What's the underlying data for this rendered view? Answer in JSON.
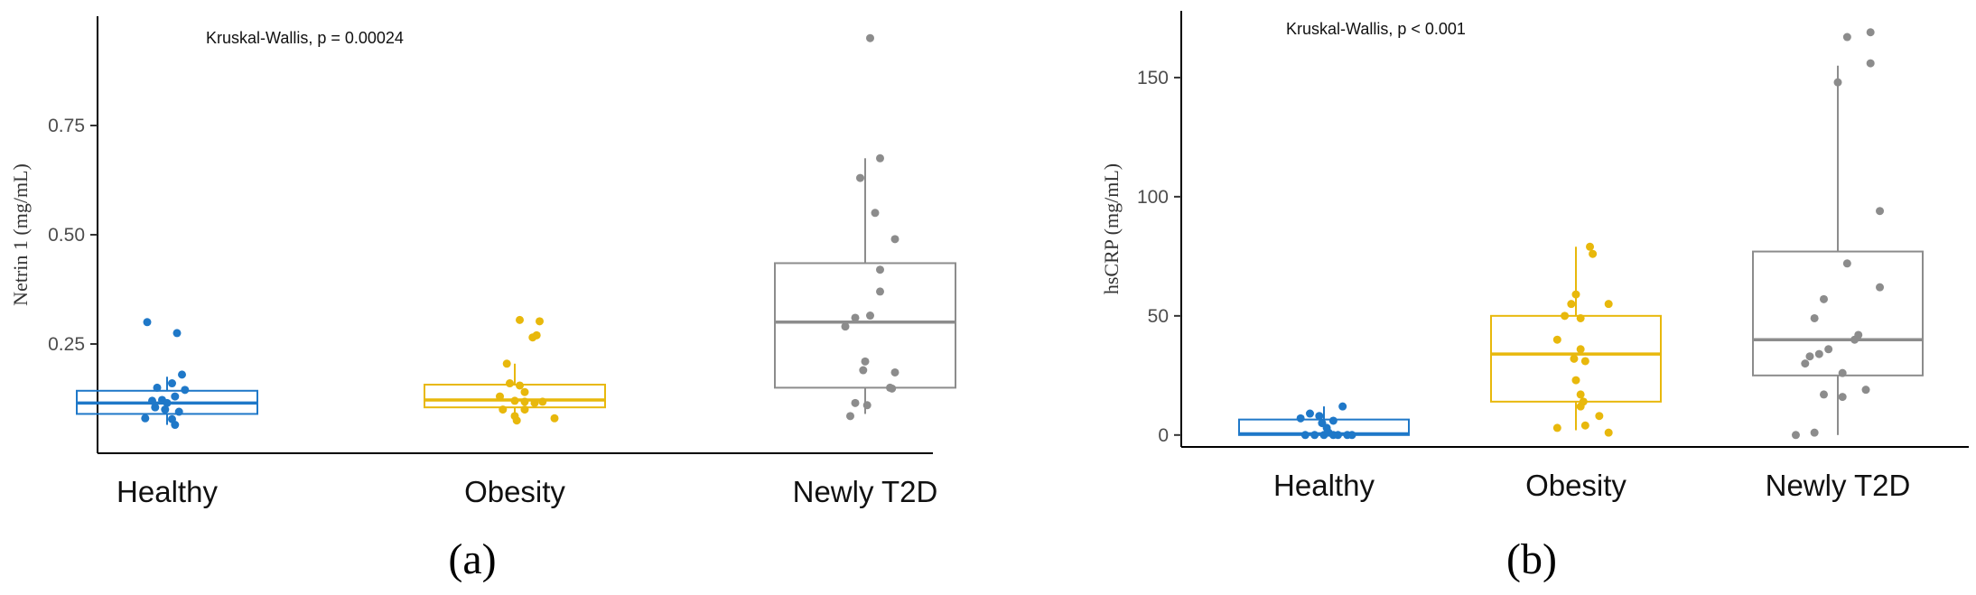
{
  "colors": {
    "Healthy": "#1f78c8",
    "Obesity": "#e8b80c",
    "Newly T2D": "#8c8c8c",
    "axis": "#000000"
  },
  "chart_data": [
    {
      "type": "boxplot",
      "panel_label": "(a)",
      "ylabel": "Netrin 1 (mg/mL)",
      "annotation": "Kruskal-Wallis, p = 0.00024",
      "ylim": [
        0.0,
        1.0
      ],
      "yticks": [
        0.25,
        0.5,
        0.75
      ],
      "ytick_labels": [
        "0.25",
        "0.50",
        "0.75"
      ],
      "categories": [
        "Healthy",
        "Obesity",
        "Newly T2D"
      ],
      "boxes": [
        {
          "q1": 0.09,
          "median": 0.115,
          "q3": 0.143,
          "whisker_low": 0.065,
          "whisker_high": 0.175
        },
        {
          "q1": 0.105,
          "median": 0.122,
          "q3": 0.157,
          "whisker_low": 0.08,
          "whisker_high": 0.205
        },
        {
          "q1": 0.15,
          "median": 0.3,
          "q3": 0.435,
          "whisker_low": 0.09,
          "whisker_high": 0.675
        }
      ],
      "points": [
        [
          {
            "x": -0.2,
            "y": 0.3
          },
          {
            "x": 0.1,
            "y": 0.275
          },
          {
            "x": -0.1,
            "y": 0.15
          },
          {
            "x": 0.15,
            "y": 0.18
          },
          {
            "x": 0.05,
            "y": 0.16
          },
          {
            "x": -0.15,
            "y": 0.12
          },
          {
            "x": -0.05,
            "y": 0.122
          },
          {
            "x": 0.08,
            "y": 0.13
          },
          {
            "x": 0.18,
            "y": 0.145
          },
          {
            "x": -0.02,
            "y": 0.1
          },
          {
            "x": 0.0,
            "y": 0.115
          },
          {
            "x": 0.12,
            "y": 0.095
          },
          {
            "x": -0.12,
            "y": 0.105
          },
          {
            "x": -0.22,
            "y": 0.08
          },
          {
            "x": 0.05,
            "y": 0.078
          },
          {
            "x": 0.08,
            "y": 0.065
          }
        ],
        [
          {
            "x": 0.05,
            "y": 0.305
          },
          {
            "x": 0.25,
            "y": 0.302
          },
          {
            "x": 0.22,
            "y": 0.27
          },
          {
            "x": 0.18,
            "y": 0.265
          },
          {
            "x": -0.08,
            "y": 0.205
          },
          {
            "x": -0.05,
            "y": 0.16
          },
          {
            "x": 0.05,
            "y": 0.155
          },
          {
            "x": 0.1,
            "y": 0.14
          },
          {
            "x": -0.15,
            "y": 0.13
          },
          {
            "x": 0.0,
            "y": 0.12
          },
          {
            "x": 0.1,
            "y": 0.118
          },
          {
            "x": 0.2,
            "y": 0.115
          },
          {
            "x": 0.28,
            "y": 0.118
          },
          {
            "x": -0.12,
            "y": 0.1
          },
          {
            "x": 0.1,
            "y": 0.1
          },
          {
            "x": 0.0,
            "y": 0.085
          },
          {
            "x": 0.02,
            "y": 0.075
          },
          {
            "x": 0.4,
            "y": 0.08
          }
        ],
        [
          {
            "x": 0.05,
            "y": 0.95
          },
          {
            "x": 0.15,
            "y": 0.675
          },
          {
            "x": -0.05,
            "y": 0.63
          },
          {
            "x": 0.1,
            "y": 0.55
          },
          {
            "x": 0.3,
            "y": 0.49
          },
          {
            "x": 0.15,
            "y": 0.42
          },
          {
            "x": 0.15,
            "y": 0.37
          },
          {
            "x": -0.1,
            "y": 0.31
          },
          {
            "x": -0.2,
            "y": 0.29
          },
          {
            "x": 0.05,
            "y": 0.315
          },
          {
            "x": 0.0,
            "y": 0.21
          },
          {
            "x": -0.02,
            "y": 0.19
          },
          {
            "x": 0.3,
            "y": 0.185
          },
          {
            "x": 0.25,
            "y": 0.15
          },
          {
            "x": 0.27,
            "y": 0.148
          },
          {
            "x": -0.1,
            "y": 0.115
          },
          {
            "x": 0.02,
            "y": 0.11
          },
          {
            "x": -0.15,
            "y": 0.085
          }
        ]
      ]
    },
    {
      "type": "boxplot",
      "panel_label": "(b)",
      "ylabel": "hsCRP (mg/mL)",
      "annotation": "Kruskal-Wallis, p < 0.001",
      "ylim": [
        -5,
        178
      ],
      "yticks": [
        0,
        50,
        100,
        150
      ],
      "ytick_labels": [
        "0",
        "50",
        "100",
        "150"
      ],
      "categories": [
        "Healthy",
        "Obesity",
        "Newly T2D"
      ],
      "boxes": [
        {
          "q1": 0.0,
          "median": 0.5,
          "q3": 6.5,
          "whisker_low": 0.0,
          "whisker_high": 12.0
        },
        {
          "q1": 14.0,
          "median": 34.0,
          "q3": 50.0,
          "whisker_low": 2.0,
          "whisker_high": 79.0
        },
        {
          "q1": 25.0,
          "median": 40.0,
          "q3": 77.0,
          "whisker_low": 0.0,
          "whisker_high": 155.0
        }
      ],
      "points": [
        [
          {
            "x": -0.25,
            "y": 7
          },
          {
            "x": -0.15,
            "y": 9
          },
          {
            "x": -0.05,
            "y": 8
          },
          {
            "x": 0.1,
            "y": 6
          },
          {
            "x": 0.2,
            "y": 12
          },
          {
            "x": -0.2,
            "y": 0
          },
          {
            "x": -0.02,
            "y": 5
          },
          {
            "x": 0.03,
            "y": 3
          },
          {
            "x": -0.1,
            "y": 0
          },
          {
            "x": 0.0,
            "y": 0
          },
          {
            "x": 0.05,
            "y": 1
          },
          {
            "x": 0.1,
            "y": 0
          },
          {
            "x": 0.15,
            "y": 0
          },
          {
            "x": 0.25,
            "y": 0
          },
          {
            "x": 0.3,
            "y": 0
          }
        ],
        [
          {
            "x": 0.15,
            "y": 79
          },
          {
            "x": 0.18,
            "y": 76
          },
          {
            "x": 0.0,
            "y": 59
          },
          {
            "x": -0.05,
            "y": 55
          },
          {
            "x": 0.35,
            "y": 55
          },
          {
            "x": -0.12,
            "y": 50
          },
          {
            "x": 0.05,
            "y": 49
          },
          {
            "x": -0.2,
            "y": 40
          },
          {
            "x": 0.05,
            "y": 36
          },
          {
            "x": -0.02,
            "y": 32
          },
          {
            "x": 0.1,
            "y": 31
          },
          {
            "x": 0.0,
            "y": 23
          },
          {
            "x": 0.05,
            "y": 17
          },
          {
            "x": 0.08,
            "y": 14
          },
          {
            "x": 0.05,
            "y": 12
          },
          {
            "x": 0.25,
            "y": 8
          },
          {
            "x": -0.2,
            "y": 3
          },
          {
            "x": 0.1,
            "y": 4
          },
          {
            "x": 0.35,
            "y": 1
          }
        ],
        [
          {
            "x": 0.1,
            "y": 167
          },
          {
            "x": 0.35,
            "y": 169
          },
          {
            "x": 0.35,
            "y": 156
          },
          {
            "x": 0.0,
            "y": 148
          },
          {
            "x": 0.45,
            "y": 94
          },
          {
            "x": 0.1,
            "y": 72
          },
          {
            "x": 0.45,
            "y": 62
          },
          {
            "x": -0.15,
            "y": 57
          },
          {
            "x": -0.25,
            "y": 49
          },
          {
            "x": 0.22,
            "y": 42
          },
          {
            "x": 0.18,
            "y": 40
          },
          {
            "x": -0.1,
            "y": 36
          },
          {
            "x": -0.3,
            "y": 33
          },
          {
            "x": -0.2,
            "y": 34
          },
          {
            "x": -0.35,
            "y": 30
          },
          {
            "x": 0.05,
            "y": 26
          },
          {
            "x": 0.3,
            "y": 19
          },
          {
            "x": -0.15,
            "y": 17
          },
          {
            "x": 0.05,
            "y": 16
          },
          {
            "x": -0.45,
            "y": 0
          },
          {
            "x": -0.25,
            "y": 1
          }
        ]
      ]
    }
  ]
}
